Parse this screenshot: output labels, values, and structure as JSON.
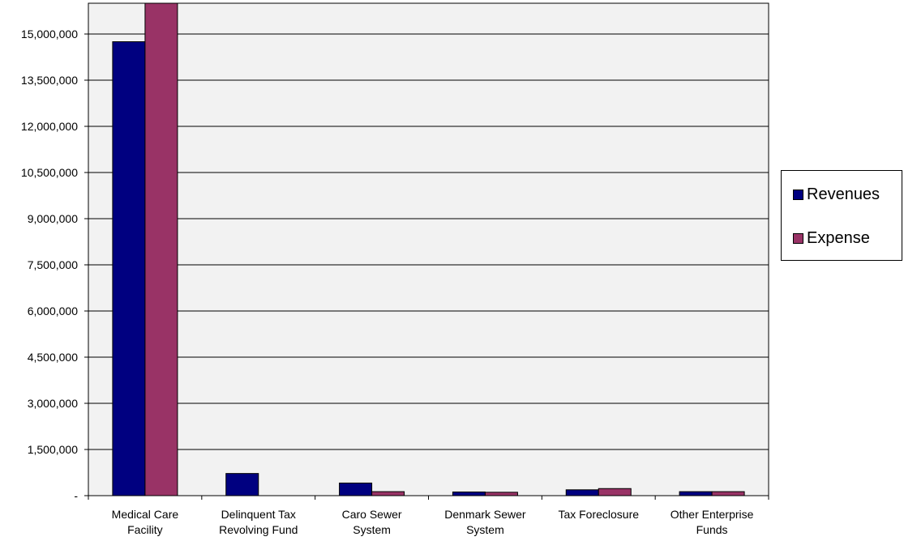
{
  "chart_data": {
    "type": "bar",
    "title": "",
    "xlabel": "",
    "ylabel": "",
    "categories": [
      [
        "Medical Care",
        "Facility"
      ],
      [
        "Delinquent Tax",
        "Revolving Fund"
      ],
      [
        "Caro Sewer",
        "System"
      ],
      [
        "Denmark Sewer",
        "System"
      ],
      [
        "Tax Foreclosure"
      ],
      [
        "Other Enterprise",
        "Funds"
      ]
    ],
    "series": [
      {
        "name": "Revenues",
        "color": "#000080",
        "values": [
          14750000,
          720000,
          410000,
          120000,
          190000,
          130000
        ]
      },
      {
        "name": "Expense",
        "color": "#993366",
        "values": [
          16000000,
          0,
          130000,
          110000,
          230000,
          130000
        ]
      }
    ],
    "ylim": [
      0,
      16000000
    ],
    "yticks": [
      0,
      1500000,
      3000000,
      4500000,
      6000000,
      7500000,
      9000000,
      10500000,
      12000000,
      13500000,
      15000000
    ],
    "ytick_labels": [
      "-",
      "1,500,000",
      "3,000,000",
      "4,500,000",
      "6,000,000",
      "7,500,000",
      "9,000,000",
      "10,500,000",
      "12,000,000",
      "13,500,000",
      "15,000,000"
    ],
    "grid": true,
    "plot_background": "#f2f2f2",
    "legend": {
      "position": "right",
      "entries": [
        "Revenues",
        "Expense"
      ]
    }
  }
}
